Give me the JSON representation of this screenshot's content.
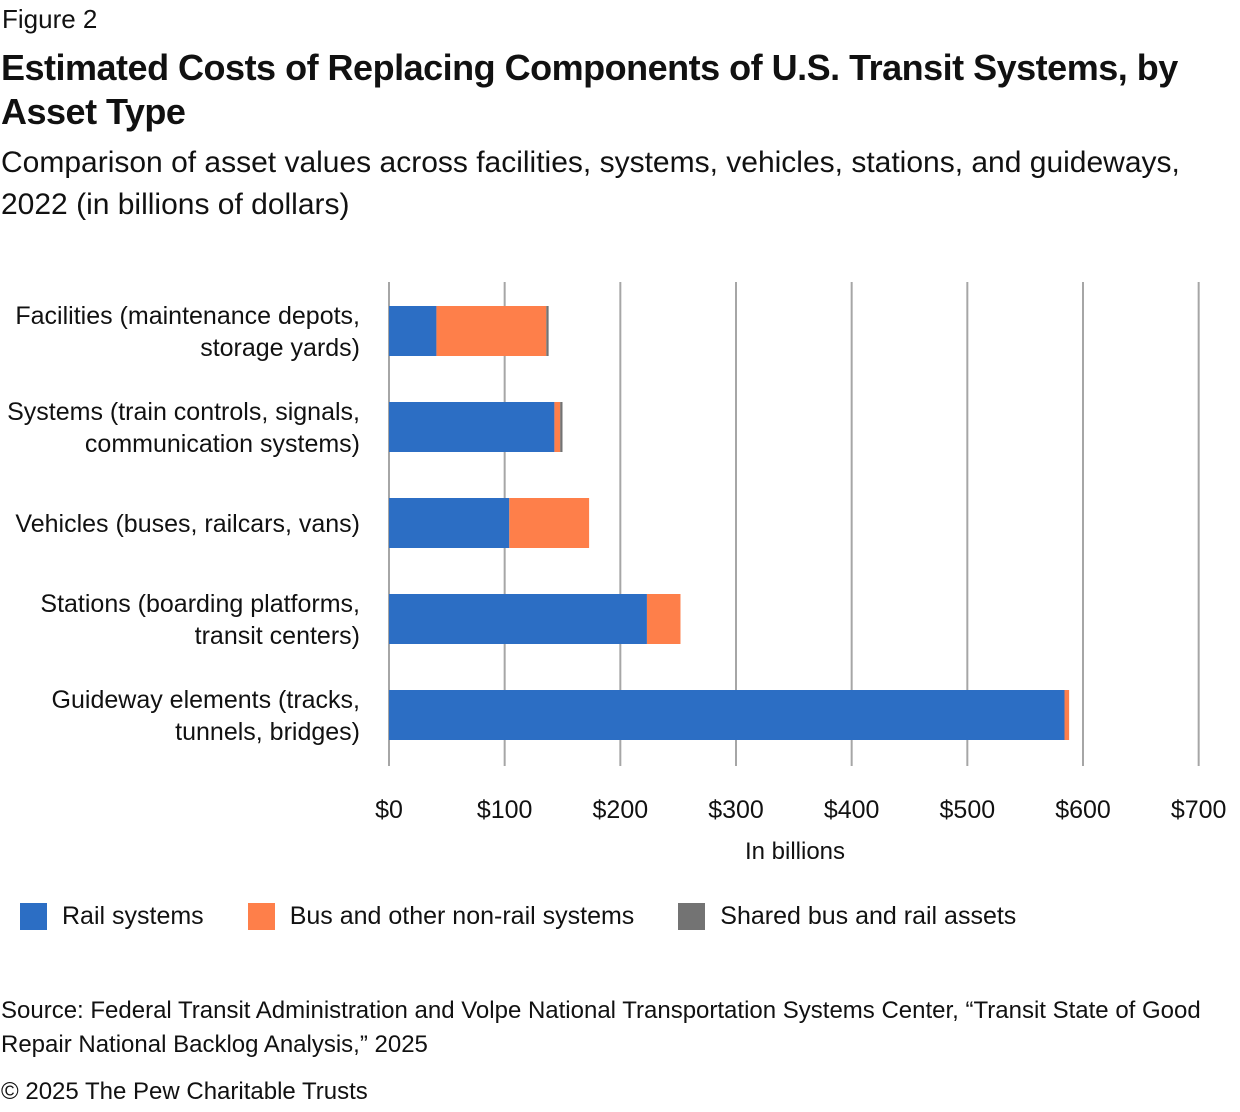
{
  "figure_label": "Figure 2",
  "title": "Estimated Costs of Replacing Components of U.S. Transit Systems, by Asset Type",
  "subtitle": "Comparison of asset values across facilities, systems, vehicles, stations, and guideways, 2022 (in billions of dollars)",
  "source": "Source: Federal Transit Administration and Volpe National Transportation Systems Center, “Transit State of Good Repair National Backlog Analysis,” 2025",
  "copyright": "© 2025 The Pew Charitable Trusts",
  "chart_data": {
    "type": "bar",
    "orientation": "horizontal",
    "stacked": true,
    "title": "Estimated Costs of Replacing Components of U.S. Transit Systems, by Asset Type",
    "xlabel": "In billions",
    "ylabel": "",
    "xlim": [
      0,
      700
    ],
    "xticks": [
      0,
      100,
      200,
      300,
      400,
      500,
      600,
      700
    ],
    "xtick_labels": [
      "$0",
      "$100",
      "$200",
      "$300",
      "$400",
      "$500",
      "$600",
      "$700"
    ],
    "grid": "vertical",
    "legend_position": "bottom",
    "categories": [
      [
        "Facilities (maintenance depots,",
        "storage yards)"
      ],
      [
        "Systems (train controls, signals,",
        "communication systems)"
      ],
      [
        "Vehicles (buses, railcars, vans)"
      ],
      [
        "Stations (boarding platforms,",
        "transit centers)"
      ],
      [
        "Guideway elements (tracks,",
        "tunnels, bridges)"
      ]
    ],
    "series": [
      {
        "name": "Rail systems",
        "color": "#2c6ec4",
        "values": [
          41,
          143,
          104,
          223,
          584
        ]
      },
      {
        "name": "Bus and other non-rail systems",
        "color": "#fe7f4a",
        "values": [
          95,
          5,
          69,
          29,
          4
        ]
      },
      {
        "name": "Shared bus and rail assets",
        "color": "#737373",
        "values": [
          2,
          2,
          0,
          0,
          0
        ]
      }
    ]
  }
}
